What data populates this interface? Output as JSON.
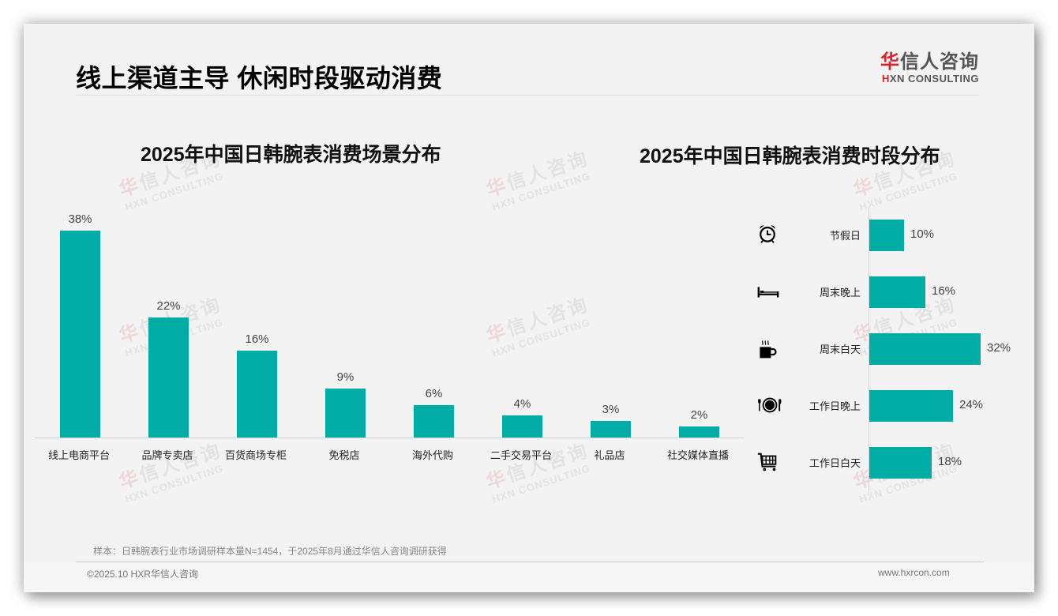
{
  "header": {
    "title": "线上渠道主导 休闲时段驱动消费",
    "logo": {
      "cn_mark": "华",
      "cn_rest": "信人咨询",
      "en_mark": "H",
      "en_rest": "XN CONSULTING"
    }
  },
  "colors": {
    "bar": "#00ada6",
    "brand_red": "#d7242c",
    "background": "#f3f3f3"
  },
  "watermark": {
    "cn_mark": "华",
    "cn_rest": "信人咨询",
    "en": "HXN CONSULTING"
  },
  "chart_data": [
    {
      "type": "bar",
      "title": "2025年中国日韩腕表消费场景分布",
      "orientation": "vertical",
      "categories": [
        "线上电商平台",
        "品牌专卖店",
        "百货商场专柜",
        "免税店",
        "海外代购",
        "二手交易平台",
        "礼品店",
        "社交媒体直播"
      ],
      "values": [
        38,
        22,
        16,
        9,
        6,
        4,
        3,
        2
      ],
      "value_labels": [
        "38%",
        "22%",
        "16%",
        "9%",
        "6%",
        "4%",
        "3%",
        "2%"
      ],
      "xlabel": "",
      "ylabel": "",
      "unit": "%",
      "grid": false,
      "legend": "none"
    },
    {
      "type": "bar",
      "title": "2025年中国日韩腕表消费时段分布",
      "orientation": "horizontal",
      "categories": [
        "节假日",
        "周末晚上",
        "周末白天",
        "工作日晚上",
        "工作日白天"
      ],
      "values": [
        10,
        16,
        32,
        24,
        18
      ],
      "value_labels": [
        "10%",
        "16%",
        "32%",
        "24%",
        "18%"
      ],
      "icons": [
        "alarm-clock-icon",
        "bed-icon",
        "hot-coffee-icon",
        "dining-plate-icon",
        "shopping-cart-icon"
      ],
      "xlabel": "",
      "ylabel": "",
      "unit": "%",
      "grid": false,
      "legend": "none"
    }
  ],
  "footer": {
    "note": "样本：日韩腕表行业市场调研样本量N=1454，于2025年8月通过华信人咨询调研获得",
    "copyright": "©2025.10 HXR华信人咨询",
    "website": "www.hxrcon.com"
  }
}
